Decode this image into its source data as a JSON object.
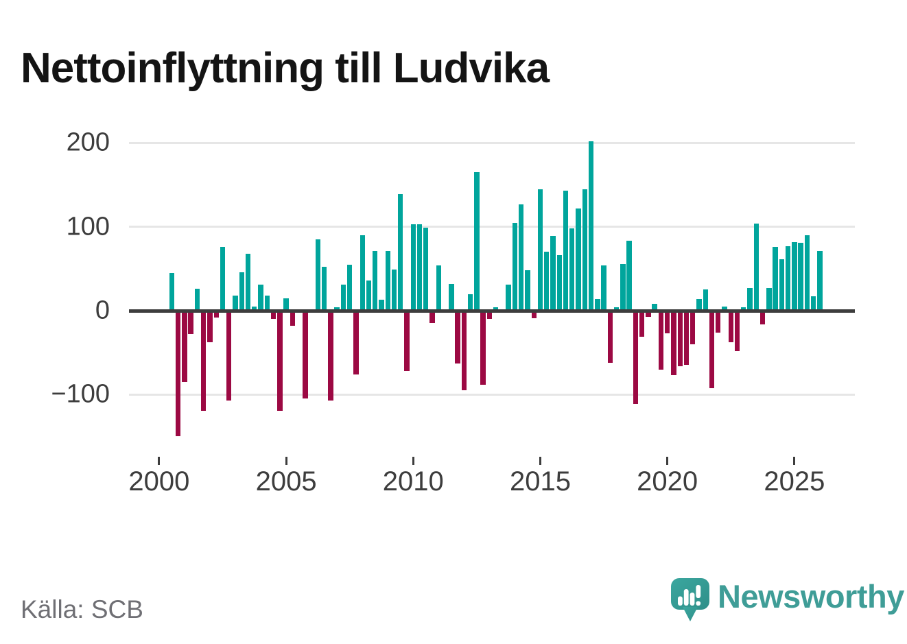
{
  "title": "Nettoinflyttning till Ludvika",
  "source": "Källa: SCB",
  "brand": {
    "name": "Newsworthy"
  },
  "colors": {
    "positive": "#00A59C",
    "negative": "#9C0943",
    "title_text": "#141414",
    "axis_text": "#3D3D3D",
    "zero_line": "#3D3D3D",
    "gridline": "#E6E6E6",
    "source_text": "#6F6F74",
    "brand_teal": "#3F9D97",
    "icon_bars": "#FFFFFF"
  },
  "chart_data": {
    "type": "bar",
    "title": "Nettoinflyttning till Ludvika",
    "xlabel": "",
    "ylabel": "",
    "grid": "horizontal",
    "legend": "none",
    "ylim": [
      -175,
      225
    ],
    "y_ticks": [
      200,
      100,
      0,
      -100
    ],
    "y_tick_labels": [
      "200",
      "100",
      "0",
      "−100"
    ],
    "x_tick_years": [
      2000,
      2005,
      2010,
      2015,
      2020,
      2025
    ],
    "x_tick_labels": [
      "2000",
      "2005",
      "2010",
      "2015",
      "2020",
      "2025"
    ],
    "categories": [
      "2000 Q3",
      "2000 Q4",
      "2001 Q1",
      "2001 Q2",
      "2001 Q3",
      "2001 Q4",
      "2002 Q1",
      "2002 Q2",
      "2002 Q3",
      "2002 Q4",
      "2003 Q1",
      "2003 Q2",
      "2003 Q3",
      "2003 Q4",
      "2004 Q1",
      "2004 Q2",
      "2004 Q3",
      "2004 Q4",
      "2005 Q1",
      "2005 Q2",
      "2005 Q3",
      "2005 Q4",
      "2006 Q1",
      "2006 Q2",
      "2006 Q3",
      "2006 Q4",
      "2007 Q1",
      "2007 Q2",
      "2007 Q3",
      "2007 Q4",
      "2008 Q1",
      "2008 Q2",
      "2008 Q3",
      "2008 Q4",
      "2009 Q1",
      "2009 Q2",
      "2009 Q3",
      "2009 Q4",
      "2010 Q1",
      "2010 Q2",
      "2010 Q3",
      "2010 Q4",
      "2011 Q1",
      "2011 Q2",
      "2011 Q3",
      "2011 Q4",
      "2012 Q1",
      "2012 Q2",
      "2012 Q3",
      "2012 Q4",
      "2013 Q1",
      "2013 Q2",
      "2013 Q3",
      "2013 Q4",
      "2014 Q1",
      "2014 Q2",
      "2014 Q3",
      "2014 Q4",
      "2015 Q1",
      "2015 Q2",
      "2015 Q3",
      "2015 Q4",
      "2016 Q1",
      "2016 Q2",
      "2016 Q3",
      "2016 Q4",
      "2017 Q1",
      "2017 Q2",
      "2017 Q3",
      "2017 Q4",
      "2018 Q1",
      "2018 Q2",
      "2018 Q3",
      "2018 Q4",
      "2019 Q1",
      "2019 Q2",
      "2019 Q3",
      "2019 Q4",
      "2020 Q1",
      "2020 Q2",
      "2020 Q3",
      "2020 Q4",
      "2021 Q1",
      "2021 Q2",
      "2021 Q3",
      "2021 Q4",
      "2022 Q1",
      "2022 Q2",
      "2022 Q3",
      "2022 Q4",
      "2023 Q1",
      "2023 Q2",
      "2023 Q3",
      "2023 Q4",
      "2024 Q1",
      "2024 Q2",
      "2024 Q3",
      "2024 Q4",
      "2025 Q1",
      "2025 Q2",
      "2025 Q3",
      "2025 Q4",
      "2026 Q1"
    ],
    "values": [
      45,
      -150,
      -85,
      -28,
      26,
      -119,
      -38,
      -8,
      76,
      -107,
      18,
      46,
      68,
      5,
      31,
      18,
      -10,
      -119,
      15,
      -18,
      0,
      -105,
      2,
      85,
      52,
      -107,
      4,
      31,
      55,
      -76,
      90,
      36,
      71,
      13,
      71,
      49,
      139,
      -72,
      103,
      103,
      99,
      -15,
      54,
      0,
      32,
      -63,
      -95,
      20,
      165,
      -88,
      -10,
      4,
      0,
      31,
      105,
      127,
      48,
      -9,
      145,
      70,
      89,
      66,
      143,
      98,
      122,
      145,
      202,
      14,
      54,
      -62,
      4,
      56,
      83,
      -111,
      -31,
      -7,
      8,
      -70,
      -27,
      -77,
      -66,
      -65,
      -40,
      14,
      25,
      -92,
      -26,
      5,
      -38,
      -48,
      4,
      27,
      104,
      -16,
      27,
      76,
      61,
      77,
      82,
      81,
      90,
      17,
      71
    ]
  }
}
